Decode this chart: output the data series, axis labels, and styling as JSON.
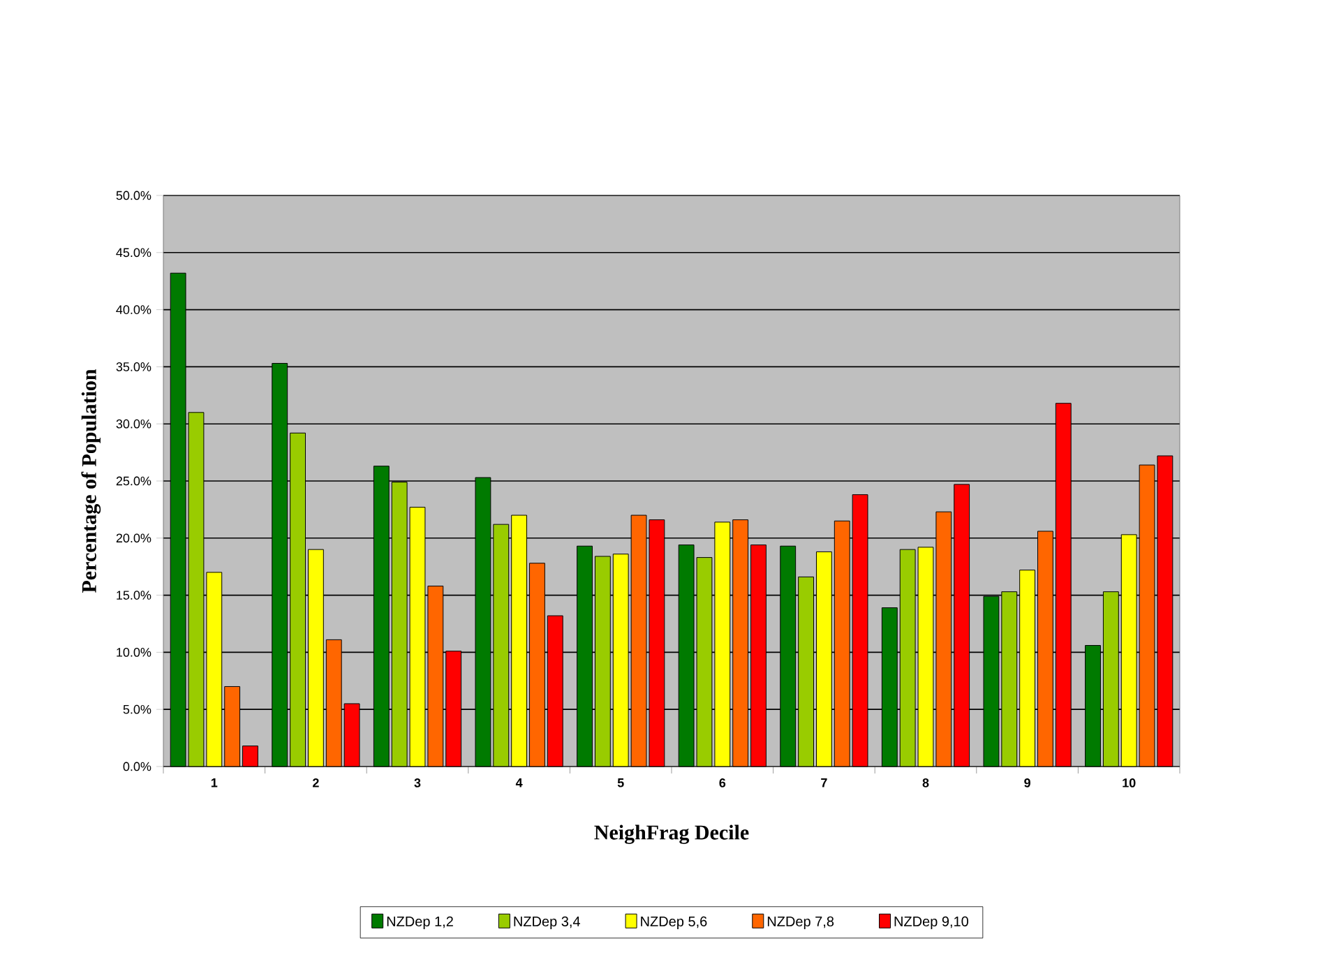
{
  "chart_data": {
    "type": "bar",
    "xlabel": "NeighFrag Decile",
    "ylabel": "Percentage of Population",
    "categories": [
      "1",
      "2",
      "3",
      "4",
      "5",
      "6",
      "7",
      "8",
      "9",
      "10"
    ],
    "series": [
      {
        "name": "NZDep 1,2",
        "color": "#007a00",
        "values": [
          43.2,
          35.3,
          26.3,
          25.3,
          19.3,
          19.4,
          19.3,
          13.9,
          14.9,
          10.6
        ]
      },
      {
        "name": "NZDep 3,4",
        "color": "#99cc00",
        "values": [
          31.0,
          29.2,
          24.9,
          21.2,
          18.4,
          18.3,
          16.6,
          19.0,
          15.3,
          15.3
        ]
      },
      {
        "name": "NZDep 5,6",
        "color": "#ffff00",
        "values": [
          17.0,
          19.0,
          22.7,
          22.0,
          18.6,
          21.4,
          18.8,
          19.2,
          17.2,
          20.3
        ]
      },
      {
        "name": "NZDep 7,8",
        "color": "#ff6600",
        "values": [
          7.0,
          11.1,
          15.8,
          17.8,
          22.0,
          21.6,
          21.5,
          22.3,
          20.6,
          26.4
        ]
      },
      {
        "name": "NZDep 9,10",
        "color": "#ff0000",
        "values": [
          1.8,
          5.5,
          10.1,
          13.2,
          21.6,
          19.4,
          23.8,
          24.7,
          31.8,
          27.2
        ]
      }
    ],
    "ylim": [
      0,
      50
    ],
    "yticks": [
      {
        "value": 0,
        "label": "0.0%"
      },
      {
        "value": 5,
        "label": "5.0%"
      },
      {
        "value": 10,
        "label": "10.0%"
      },
      {
        "value": 15,
        "label": "15.0%"
      },
      {
        "value": 20,
        "label": "20.0%"
      },
      {
        "value": 25,
        "label": "25.0%"
      },
      {
        "value": 30,
        "label": "30.0%"
      },
      {
        "value": 35,
        "label": "35.0%"
      },
      {
        "value": 40,
        "label": "40.0%"
      },
      {
        "value": 45,
        "label": "45.0%"
      },
      {
        "value": 50,
        "label": "50.0%"
      }
    ],
    "grid": "y",
    "legend": "bottom"
  }
}
